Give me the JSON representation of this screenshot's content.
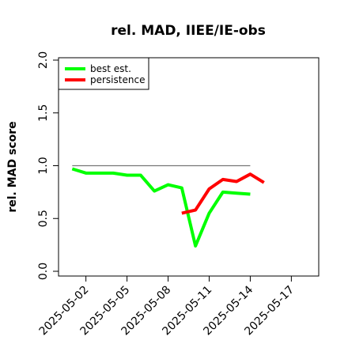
{
  "chart_data": {
    "type": "line",
    "title": "rel. MAD, IIEE/IE-obs",
    "xlabel": "",
    "ylabel": "rel. MAD score",
    "xlim": [
      "2025-04-30",
      "2025-05-19"
    ],
    "ylim": [
      0.0,
      2.0
    ],
    "x_ticks": [
      "2025-05-02",
      "2025-05-05",
      "2025-05-08",
      "2025-05-11",
      "2025-05-14",
      "2025-05-17"
    ],
    "y_ticks": [
      "0.0",
      "0.5",
      "1.0",
      "1.5",
      "2.0"
    ],
    "grid": false,
    "legend_position": "top-left",
    "reference_line": {
      "from": "2025-05-01",
      "to": "2025-05-14",
      "y": 1.0,
      "color": "#777777"
    },
    "series": [
      {
        "name": "best est.",
        "color": "#00ff00",
        "points": [
          [
            "2025-05-01",
            0.97
          ],
          [
            "2025-05-02",
            0.93
          ],
          [
            "2025-05-03",
            0.93
          ],
          [
            "2025-05-04",
            0.93
          ],
          [
            "2025-05-05",
            0.91
          ],
          [
            "2025-05-06",
            0.91
          ],
          [
            "2025-05-07",
            0.76
          ],
          [
            "2025-05-08",
            0.82
          ],
          [
            "2025-05-09",
            0.79
          ],
          [
            "2025-05-10",
            0.24
          ],
          [
            "2025-05-11",
            0.55
          ],
          [
            "2025-05-12",
            0.75
          ],
          [
            "2025-05-13",
            0.74
          ],
          [
            "2025-05-14",
            0.73
          ]
        ]
      },
      {
        "name": "persistence",
        "color": "#ff0000",
        "points": [
          [
            "2025-05-09",
            0.55
          ],
          [
            "2025-05-10",
            0.58
          ],
          [
            "2025-05-11",
            0.78
          ],
          [
            "2025-05-12",
            0.87
          ],
          [
            "2025-05-13",
            0.85
          ],
          [
            "2025-05-14",
            0.92
          ],
          [
            "2025-05-15",
            0.84
          ]
        ]
      }
    ]
  }
}
